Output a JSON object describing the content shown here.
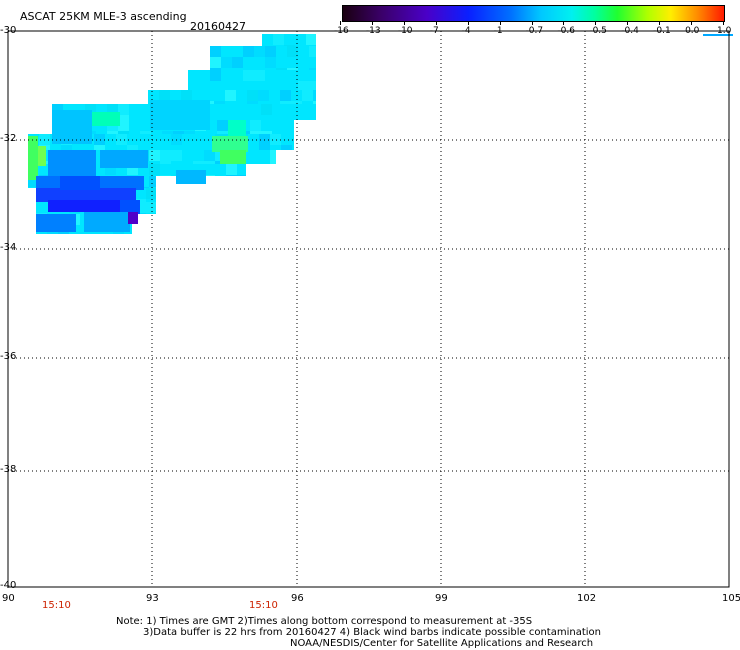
{
  "header": {
    "title": "ASCAT 25KM MLE-3 ascending",
    "date": "20160427"
  },
  "colorbar": {
    "labels": [
      "-16",
      "-13",
      "-10",
      "-7",
      "-4",
      "-1",
      "-0.7",
      "-0.6",
      "-0.5",
      "-0.4",
      "-0.1",
      "0.0",
      "1.0"
    ],
    "colors": [
      "#2a001a",
      "#3a0068",
      "#4a00b8",
      "#1a10ff",
      "#0060ff",
      "#00aaff",
      "#00e8ff",
      "#00ffb0",
      "#20ff40",
      "#a0ff00",
      "#ffee00",
      "#ff9a00",
      "#ff2a00"
    ]
  },
  "axes": {
    "y_labels": [
      "-30",
      "-32",
      "-34",
      "-36",
      "-38",
      "-40"
    ],
    "x_labels": [
      "90",
      "93",
      "96",
      "99",
      "102",
      "105"
    ]
  },
  "times": [
    "15:10",
    "15:10"
  ],
  "notes": {
    "line1": "Note: 1) Times are GMT 2)Times along bottom correspond to measurement at -35S",
    "line2": "3)Data buffer is 22 hrs from 20160427 4) Black wind barbs indicate possible contamination",
    "line3": "NOAA/NESDIS/Center for Satellite Applications and Research"
  }
}
